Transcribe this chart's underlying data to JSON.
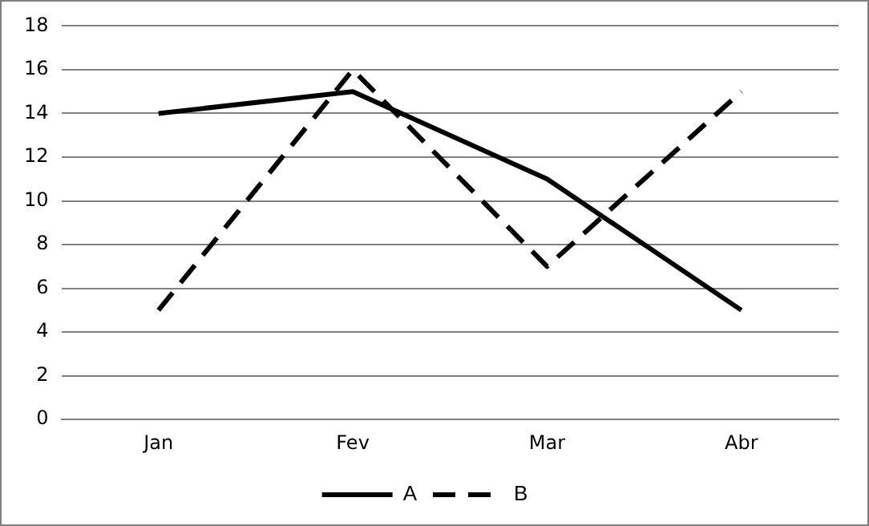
{
  "chart_data": {
    "type": "line",
    "categories": [
      "Jan",
      "Fev",
      "Mar",
      "Abr"
    ],
    "series": [
      {
        "name": "A",
        "color": "#000000",
        "values": [
          14,
          15,
          11,
          5
        ],
        "line_style": "solid"
      },
      {
        "name": "B",
        "color": "#000000",
        "values": [
          5,
          16,
          7,
          15
        ],
        "line_style": "dashed"
      }
    ],
    "ylim": [
      0,
      18
    ],
    "yticks": [
      0,
      2,
      4,
      6,
      8,
      10,
      12,
      14,
      16,
      18
    ],
    "grid": "y",
    "legend": "bottom",
    "marker": "none"
  }
}
